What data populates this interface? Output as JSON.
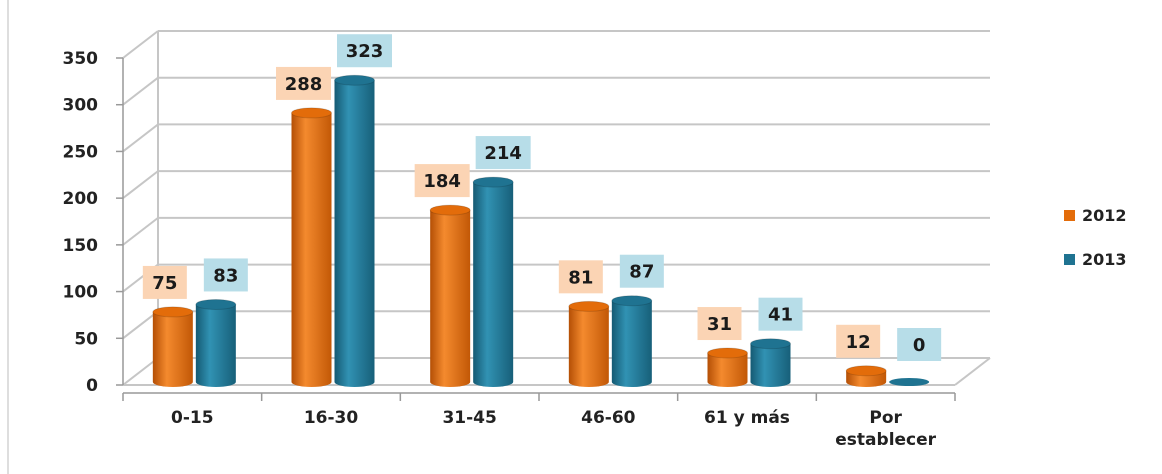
{
  "chart_data": {
    "type": "bar",
    "categories": [
      "0-15",
      "16-30",
      "31-45",
      "46-60",
      "61 y más",
      "Por establecer"
    ],
    "category_lines": [
      [
        "0-15"
      ],
      [
        "16-30"
      ],
      [
        "31-45"
      ],
      [
        "46-60"
      ],
      [
        "61 y más"
      ],
      [
        "Por",
        "establecer"
      ]
    ],
    "series": [
      {
        "name": "2012",
        "values": [
          75,
          288,
          184,
          81,
          31,
          12
        ],
        "color": "#e36c0a",
        "label_bg": "#fbd4b4"
      },
      {
        "name": "2013",
        "values": [
          83,
          323,
          214,
          87,
          41,
          0
        ],
        "color": "#1f7391",
        "label_bg": "#b7dde8"
      }
    ],
    "ylim": [
      0,
      350
    ],
    "yticks": [
      0,
      50,
      100,
      150,
      200,
      250,
      300,
      350
    ],
    "grid": true,
    "legend_position": "right",
    "title": "",
    "xlabel": "",
    "ylabel": ""
  }
}
